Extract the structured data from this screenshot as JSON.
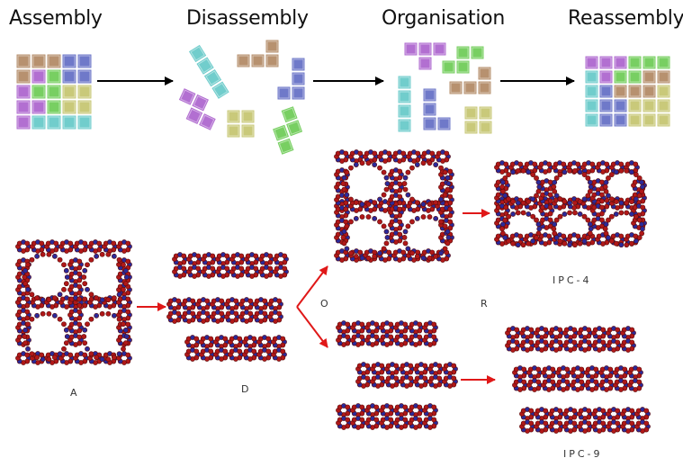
{
  "stages": {
    "assembly": "Assembly",
    "disassembly": "Disassembly",
    "organisation": "Organisation",
    "reassembly": "Reassembly"
  },
  "labels": {
    "A": "A",
    "D": "D",
    "O": "O",
    "R": "R",
    "ipc4": "IPC-4",
    "ipc9": "IPC-9"
  },
  "colors": {
    "brown": "#b7916f",
    "blue": "#6f79c9",
    "magenta": "#b26fd1",
    "green": "#78cf62",
    "yellow": "#c9c97a",
    "cyan": "#71cdcc",
    "atom_o": "#b01818",
    "atom_t": "#2a2a9a",
    "arrow_black": "#000000",
    "arrow_red": "#e01818"
  }
}
